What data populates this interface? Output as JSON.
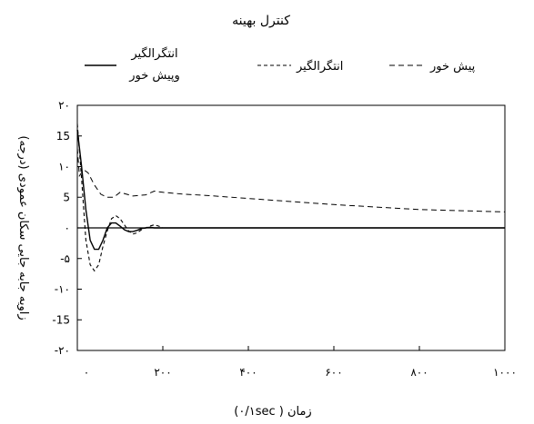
{
  "chart_data": {
    "type": "line",
    "title": "کنترل بهینه",
    "xlabel": "زمان ( ۰/۱sec)",
    "ylabel": "زاویه جابه جایی سکان عمودی (درجه)",
    "xlim": [
      0,
      1000
    ],
    "ylim": [
      -20,
      20
    ],
    "x_ticks": [
      0,
      200,
      400,
      600,
      800,
      1000
    ],
    "x_tick_labels": [
      "۰",
      "۲۰۰",
      "۴۰۰",
      "۶۰۰",
      "۸۰۰",
      "۱۰۰۰"
    ],
    "y_ticks": [
      20,
      15,
      10,
      5,
      0,
      -5,
      -10,
      -15,
      -20
    ],
    "y_tick_labels": [
      "۲۰",
      "15",
      "۱۰",
      "5",
      "۰",
      "-۵",
      "-۱۰",
      "-15",
      "-۲۰"
    ],
    "grid": false,
    "legend_position": "top",
    "series": [
      {
        "name": "پیش خور",
        "style": "dashed-sparse",
        "x": [
          0,
          5,
          15,
          25,
          40,
          55,
          70,
          85,
          100,
          130,
          160,
          180,
          200,
          250,
          300,
          400,
          500,
          600,
          700,
          800,
          900,
          1000
        ],
        "y": [
          13,
          8.5,
          9.5,
          9,
          7,
          5.5,
          5,
          5,
          5.8,
          5.2,
          5.4,
          6,
          5.8,
          5.5,
          5.3,
          4.8,
          4.3,
          3.8,
          3.4,
          3,
          2.8,
          2.6
        ]
      },
      {
        "name": "انتگرالگیر",
        "style": "dashed",
        "x": [
          0,
          10,
          20,
          30,
          40,
          50,
          60,
          70,
          80,
          90,
          100,
          110,
          120,
          130,
          140,
          150,
          160,
          170,
          180,
          190,
          200,
          250,
          300,
          1000
        ],
        "y": [
          17,
          8,
          -2,
          -6,
          -7,
          -6,
          -3,
          -0.5,
          1.5,
          2,
          1.5,
          0.5,
          -0.5,
          -1,
          -0.8,
          -0.3,
          0,
          0.3,
          0.5,
          0.3,
          0,
          0,
          0,
          0
        ]
      },
      {
        "name": "انتگرالگیر\nوپیش خور",
        "style": "solid",
        "x": [
          0,
          10,
          20,
          30,
          40,
          50,
          60,
          70,
          80,
          90,
          100,
          110,
          120,
          130,
          140,
          150,
          160,
          170,
          180,
          200,
          300,
          1000
        ],
        "y": [
          16,
          10,
          3,
          -2,
          -3.5,
          -3.5,
          -2,
          0,
          0.8,
          0.8,
          0.3,
          -0.3,
          -0.6,
          -0.6,
          -0.4,
          -0.1,
          0,
          0.1,
          0,
          0,
          0,
          0
        ]
      }
    ],
    "legend": [
      {
        "label": "پیش خور"
      },
      {
        "label": "انتگرالگیر"
      },
      {
        "label_line1": "انتگرالگیر",
        "label_line2": "وپیش خور"
      }
    ]
  }
}
